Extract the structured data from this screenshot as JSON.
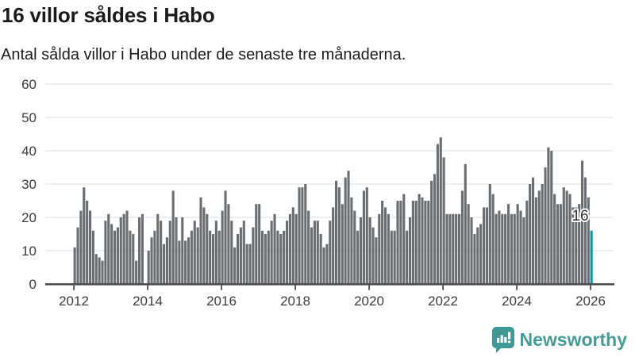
{
  "header": {
    "title": "16 villor såldes i Habo",
    "subtitle": "Antal sålda villor i Habo under de senaste tre månaderna."
  },
  "chart_data": {
    "type": "bar",
    "title": "16 villor såldes i Habo",
    "subtitle": "Antal sålda villor i Habo under de senaste tre månaderna.",
    "x_start_year": 2012,
    "x_months_per_bar": 1,
    "values": [
      11,
      17,
      22,
      29,
      25,
      22,
      16,
      9,
      8,
      7,
      19,
      21,
      18,
      16,
      17,
      20,
      21,
      22,
      16,
      15,
      7,
      20,
      21,
      0,
      10,
      14,
      16,
      21,
      19,
      12,
      14,
      19,
      28,
      20,
      13,
      20,
      13,
      14,
      16,
      19,
      17,
      26,
      23,
      21,
      16,
      15,
      19,
      16,
      22,
      28,
      24,
      19,
      11,
      15,
      17,
      19,
      12,
      12,
      17,
      24,
      24,
      16,
      15,
      16,
      19,
      21,
      16,
      15,
      16,
      19,
      21,
      23,
      21,
      29,
      29,
      30,
      22,
      17,
      19,
      19,
      15,
      11,
      12,
      19,
      23,
      31,
      29,
      24,
      32,
      34,
      26,
      22,
      16,
      20,
      28,
      29,
      20,
      17,
      14,
      21,
      25,
      23,
      21,
      16,
      16,
      25,
      25,
      27,
      16,
      20,
      25,
      25,
      27,
      26,
      25,
      25,
      31,
      33,
      42,
      44,
      38,
      21,
      21,
      21,
      21,
      21,
      28,
      36,
      24,
      20,
      15,
      17,
      18,
      23,
      23,
      30,
      27,
      21,
      22,
      21,
      21,
      24,
      21,
      21,
      24,
      22,
      20,
      25,
      30,
      32,
      26,
      28,
      30,
      35,
      41,
      40,
      27,
      24,
      24,
      29,
      28,
      27,
      23,
      23,
      24,
      37,
      32,
      26,
      16
    ],
    "highlight_last": true,
    "highlight_label": "16",
    "yticks": [
      0,
      10,
      20,
      30,
      40,
      50,
      60
    ],
    "ylim": [
      0,
      60
    ],
    "xticks": [
      2012,
      2014,
      2016,
      2018,
      2020,
      2022,
      2024,
      2026
    ],
    "grid": true,
    "legend": "none",
    "colors": {
      "bar": "#6a6d71",
      "highlight": "#0e949b",
      "gridline": "#e3e3e3",
      "axis": "#4d4d4d",
      "tick_text": "#3c3c3c",
      "annotation_text": "#333333"
    }
  },
  "footer": {
    "brand": "Newsworthy",
    "brand_color": "#479a96",
    "icon_color": "#3f9a95"
  }
}
